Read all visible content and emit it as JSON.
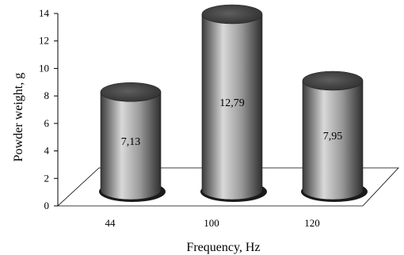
{
  "chart_data": {
    "type": "bar",
    "style": "3d-cylinder",
    "categories": [
      "44",
      "100",
      "120"
    ],
    "values": [
      7.13,
      12.79,
      7.95
    ],
    "data_labels": [
      "7,13",
      "12,79",
      "7,95"
    ],
    "xlabel": "Frequency, Hz",
    "ylabel": "Powder weight, g",
    "ylim": [
      0,
      14
    ],
    "yticks": [
      "0",
      "2",
      "4",
      "6",
      "8",
      "10",
      "12",
      "14"
    ],
    "grid": false,
    "legend": "none",
    "colors": {
      "bar_light": "#d9d9d9",
      "bar_mid": "#8a8a8a",
      "bar_dark": "#3a3a3a",
      "top": "#4a4a4a"
    }
  }
}
